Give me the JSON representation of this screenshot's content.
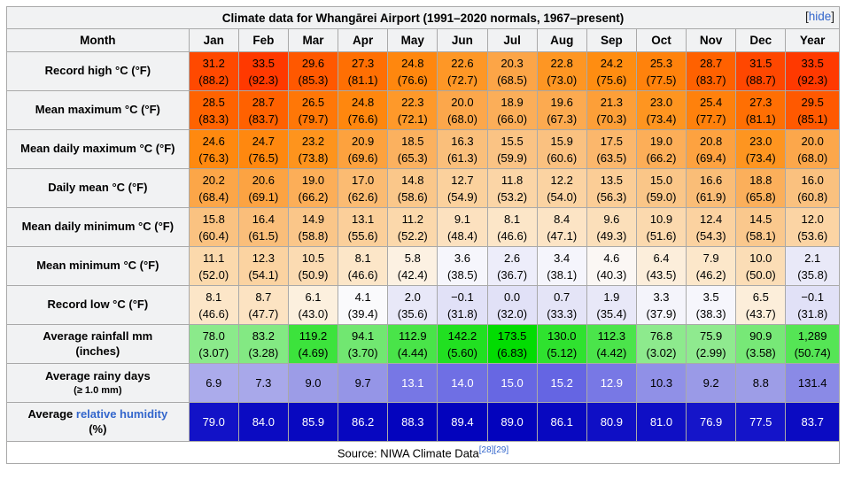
{
  "title": "Climate data for Whangārei Airport (1991–2020 normals, 1967–present)",
  "hide_control": {
    "open_bracket": "[",
    "label": "hide",
    "close_bracket": "]"
  },
  "columns": [
    "Month",
    "Jan",
    "Feb",
    "Mar",
    "Apr",
    "May",
    "Jun",
    "Jul",
    "Aug",
    "Sep",
    "Oct",
    "Nov",
    "Dec",
    "Year"
  ],
  "column_keys": [
    "jan",
    "feb",
    "mar",
    "apr",
    "may",
    "jun",
    "jul",
    "aug",
    "sep",
    "oct",
    "nov",
    "dec",
    "year"
  ],
  "rows": [
    {
      "id": "record-high",
      "label": "Record high °C (°F)",
      "kind": "temp",
      "primary": [
        "31.2",
        "33.5",
        "29.6",
        "27.3",
        "24.8",
        "22.6",
        "20.3",
        "22.8",
        "24.2",
        "25.3",
        "28.7",
        "31.5",
        "33.5"
      ],
      "secondary": [
        "(88.2)",
        "(92.3)",
        "(85.3)",
        "(81.1)",
        "(76.6)",
        "(72.7)",
        "(68.5)",
        "(73.0)",
        "(75.6)",
        "(77.5)",
        "(83.7)",
        "(88.7)",
        "(92.3)"
      ]
    },
    {
      "id": "mean-maximum",
      "label": "Mean maximum °C (°F)",
      "kind": "temp",
      "primary": [
        "28.5",
        "28.7",
        "26.5",
        "24.8",
        "22.3",
        "20.0",
        "18.9",
        "19.6",
        "21.3",
        "23.0",
        "25.4",
        "27.3",
        "29.5"
      ],
      "secondary": [
        "(83.3)",
        "(83.7)",
        "(79.7)",
        "(76.6)",
        "(72.1)",
        "(68.0)",
        "(66.0)",
        "(67.3)",
        "(70.3)",
        "(73.4)",
        "(77.7)",
        "(81.1)",
        "(85.1)"
      ]
    },
    {
      "id": "mean-daily-maximum",
      "label": "Mean daily maximum °C (°F)",
      "kind": "temp",
      "primary": [
        "24.6",
        "24.7",
        "23.2",
        "20.9",
        "18.5",
        "16.3",
        "15.5",
        "15.9",
        "17.5",
        "19.0",
        "20.8",
        "23.0",
        "20.0"
      ],
      "secondary": [
        "(76.3)",
        "(76.5)",
        "(73.8)",
        "(69.6)",
        "(65.3)",
        "(61.3)",
        "(59.9)",
        "(60.6)",
        "(63.5)",
        "(66.2)",
        "(69.4)",
        "(73.4)",
        "(68.0)"
      ]
    },
    {
      "id": "daily-mean",
      "label": "Daily mean °C (°F)",
      "kind": "temp",
      "primary": [
        "20.2",
        "20.6",
        "19.0",
        "17.0",
        "14.8",
        "12.7",
        "11.8",
        "12.2",
        "13.5",
        "15.0",
        "16.6",
        "18.8",
        "16.0"
      ],
      "secondary": [
        "(68.4)",
        "(69.1)",
        "(66.2)",
        "(62.6)",
        "(58.6)",
        "(54.9)",
        "(53.2)",
        "(54.0)",
        "(56.3)",
        "(59.0)",
        "(61.9)",
        "(65.8)",
        "(60.8)"
      ]
    },
    {
      "id": "mean-daily-minimum",
      "label": "Mean daily minimum °C (°F)",
      "kind": "temp",
      "primary": [
        "15.8",
        "16.4",
        "14.9",
        "13.1",
        "11.2",
        "9.1",
        "8.1",
        "8.4",
        "9.6",
        "10.9",
        "12.4",
        "14.5",
        "12.0"
      ],
      "secondary": [
        "(60.4)",
        "(61.5)",
        "(58.8)",
        "(55.6)",
        "(52.2)",
        "(48.4)",
        "(46.6)",
        "(47.1)",
        "(49.3)",
        "(51.6)",
        "(54.3)",
        "(58.1)",
        "(53.6)"
      ]
    },
    {
      "id": "mean-minimum",
      "label": "Mean minimum °C (°F)",
      "kind": "temp",
      "primary": [
        "11.1",
        "12.3",
        "10.5",
        "8.1",
        "5.8",
        "3.6",
        "2.6",
        "3.4",
        "4.6",
        "6.4",
        "7.9",
        "10.0",
        "2.1"
      ],
      "secondary": [
        "(52.0)",
        "(54.1)",
        "(50.9)",
        "(46.6)",
        "(42.4)",
        "(38.5)",
        "(36.7)",
        "(38.1)",
        "(40.3)",
        "(43.5)",
        "(46.2)",
        "(50.0)",
        "(35.8)"
      ]
    },
    {
      "id": "record-low",
      "label": "Record low °C (°F)",
      "kind": "temp",
      "primary": [
        "8.1",
        "8.7",
        "6.1",
        "4.1",
        "2.0",
        "−0.1",
        "0.0",
        "0.7",
        "1.9",
        "3.3",
        "3.5",
        "6.5",
        "−0.1"
      ],
      "secondary": [
        "(46.6)",
        "(47.7)",
        "(43.0)",
        "(39.4)",
        "(35.6)",
        "(31.8)",
        "(32.0)",
        "(33.3)",
        "(35.4)",
        "(37.9)",
        "(38.3)",
        "(43.7)",
        "(31.8)"
      ]
    },
    {
      "id": "average-rainfall",
      "label": "Average rainfall mm",
      "label2": "(inches)",
      "kind": "rain",
      "primary": [
        "78.0",
        "83.2",
        "119.2",
        "94.1",
        "112.9",
        "142.2",
        "173.5",
        "130.0",
        "112.3",
        "76.8",
        "75.9",
        "90.9",
        "1,289"
      ],
      "secondary": [
        "(3.07)",
        "(3.28)",
        "(4.69)",
        "(3.70)",
        "(4.44)",
        "(5.60)",
        "(6.83)",
        "(5.12)",
        "(4.42)",
        "(3.02)",
        "(2.99)",
        "(3.58)",
        "(50.74)"
      ]
    },
    {
      "id": "average-rainy-days",
      "label": "Average rainy days",
      "label2": "(≥ 1.0 mm)",
      "label2_small": true,
      "kind": "days",
      "primary": [
        "6.9",
        "7.3",
        "9.0",
        "9.7",
        "13.1",
        "14.0",
        "15.0",
        "15.2",
        "12.9",
        "10.3",
        "9.2",
        "8.8",
        "131.4"
      ]
    },
    {
      "id": "average-relative-humidity",
      "label_prefix": "Average ",
      "label_link": "relative humidity",
      "label2": "(%)",
      "kind": "humidity",
      "primary": [
        "79.0",
        "84.0",
        "85.9",
        "86.2",
        "88.3",
        "89.4",
        "89.0",
        "86.1",
        "80.9",
        "81.0",
        "76.9",
        "77.5",
        "83.7"
      ]
    }
  ],
  "source": {
    "text": "Source: NIWA Climate Data",
    "refs": [
      "[28]",
      "[29]"
    ]
  },
  "colors": {
    "link": "#3366CC",
    "header_bg": "#F1F2F3",
    "border": "#A9A9A9",
    "outer_border": "#8C8C8C",
    "humidity_text": "#FFFFFF"
  },
  "color_scales": {
    "temp": {
      "stops": [
        [
          -1,
          [
            222,
            222,
            246
          ]
        ],
        [
          2,
          [
            232,
            232,
            248
          ]
        ],
        [
          4,
          [
            250,
            250,
            253
          ]
        ],
        [
          6,
          [
            252,
            240,
            223
          ]
        ],
        [
          8,
          [
            252,
            230,
            201
          ]
        ],
        [
          11,
          [
            251,
            217,
            173
          ]
        ],
        [
          16,
          [
            250,
            193,
            127
          ]
        ],
        [
          20,
          [
            252,
            167,
            75
          ]
        ],
        [
          24,
          [
            255,
            143,
            18
          ]
        ],
        [
          28,
          [
            255,
            104,
            0
          ]
        ],
        [
          31,
          [
            255,
            74,
            0
          ]
        ],
        [
          34,
          [
            255,
            54,
            0
          ]
        ]
      ]
    },
    "rain": {
      "stops": [
        [
          70,
          [
            152,
            235,
            152
          ]
        ],
        [
          95,
          [
            112,
            231,
            112
          ]
        ],
        [
          120,
          [
            58,
            227,
            58
          ]
        ],
        [
          145,
          [
            30,
            224,
            30
          ]
        ],
        [
          175,
          [
            0,
            220,
            0
          ]
        ]
      ],
      "year_divisor": 12
    },
    "days": {
      "stops": [
        [
          6,
          [
            178,
            178,
            236
          ]
        ],
        [
          9,
          [
            156,
            156,
            231
          ]
        ],
        [
          12,
          [
            128,
            128,
            230
          ]
        ],
        [
          16,
          [
            94,
            94,
            226
          ]
        ]
      ],
      "year_divisor": 12,
      "white_text_min": 12.5
    },
    "humidity": {
      "stops": [
        [
          76,
          [
            22,
            22,
            202
          ]
        ],
        [
          90,
          [
            2,
            2,
            188
          ]
        ]
      ],
      "white_text": true
    }
  }
}
